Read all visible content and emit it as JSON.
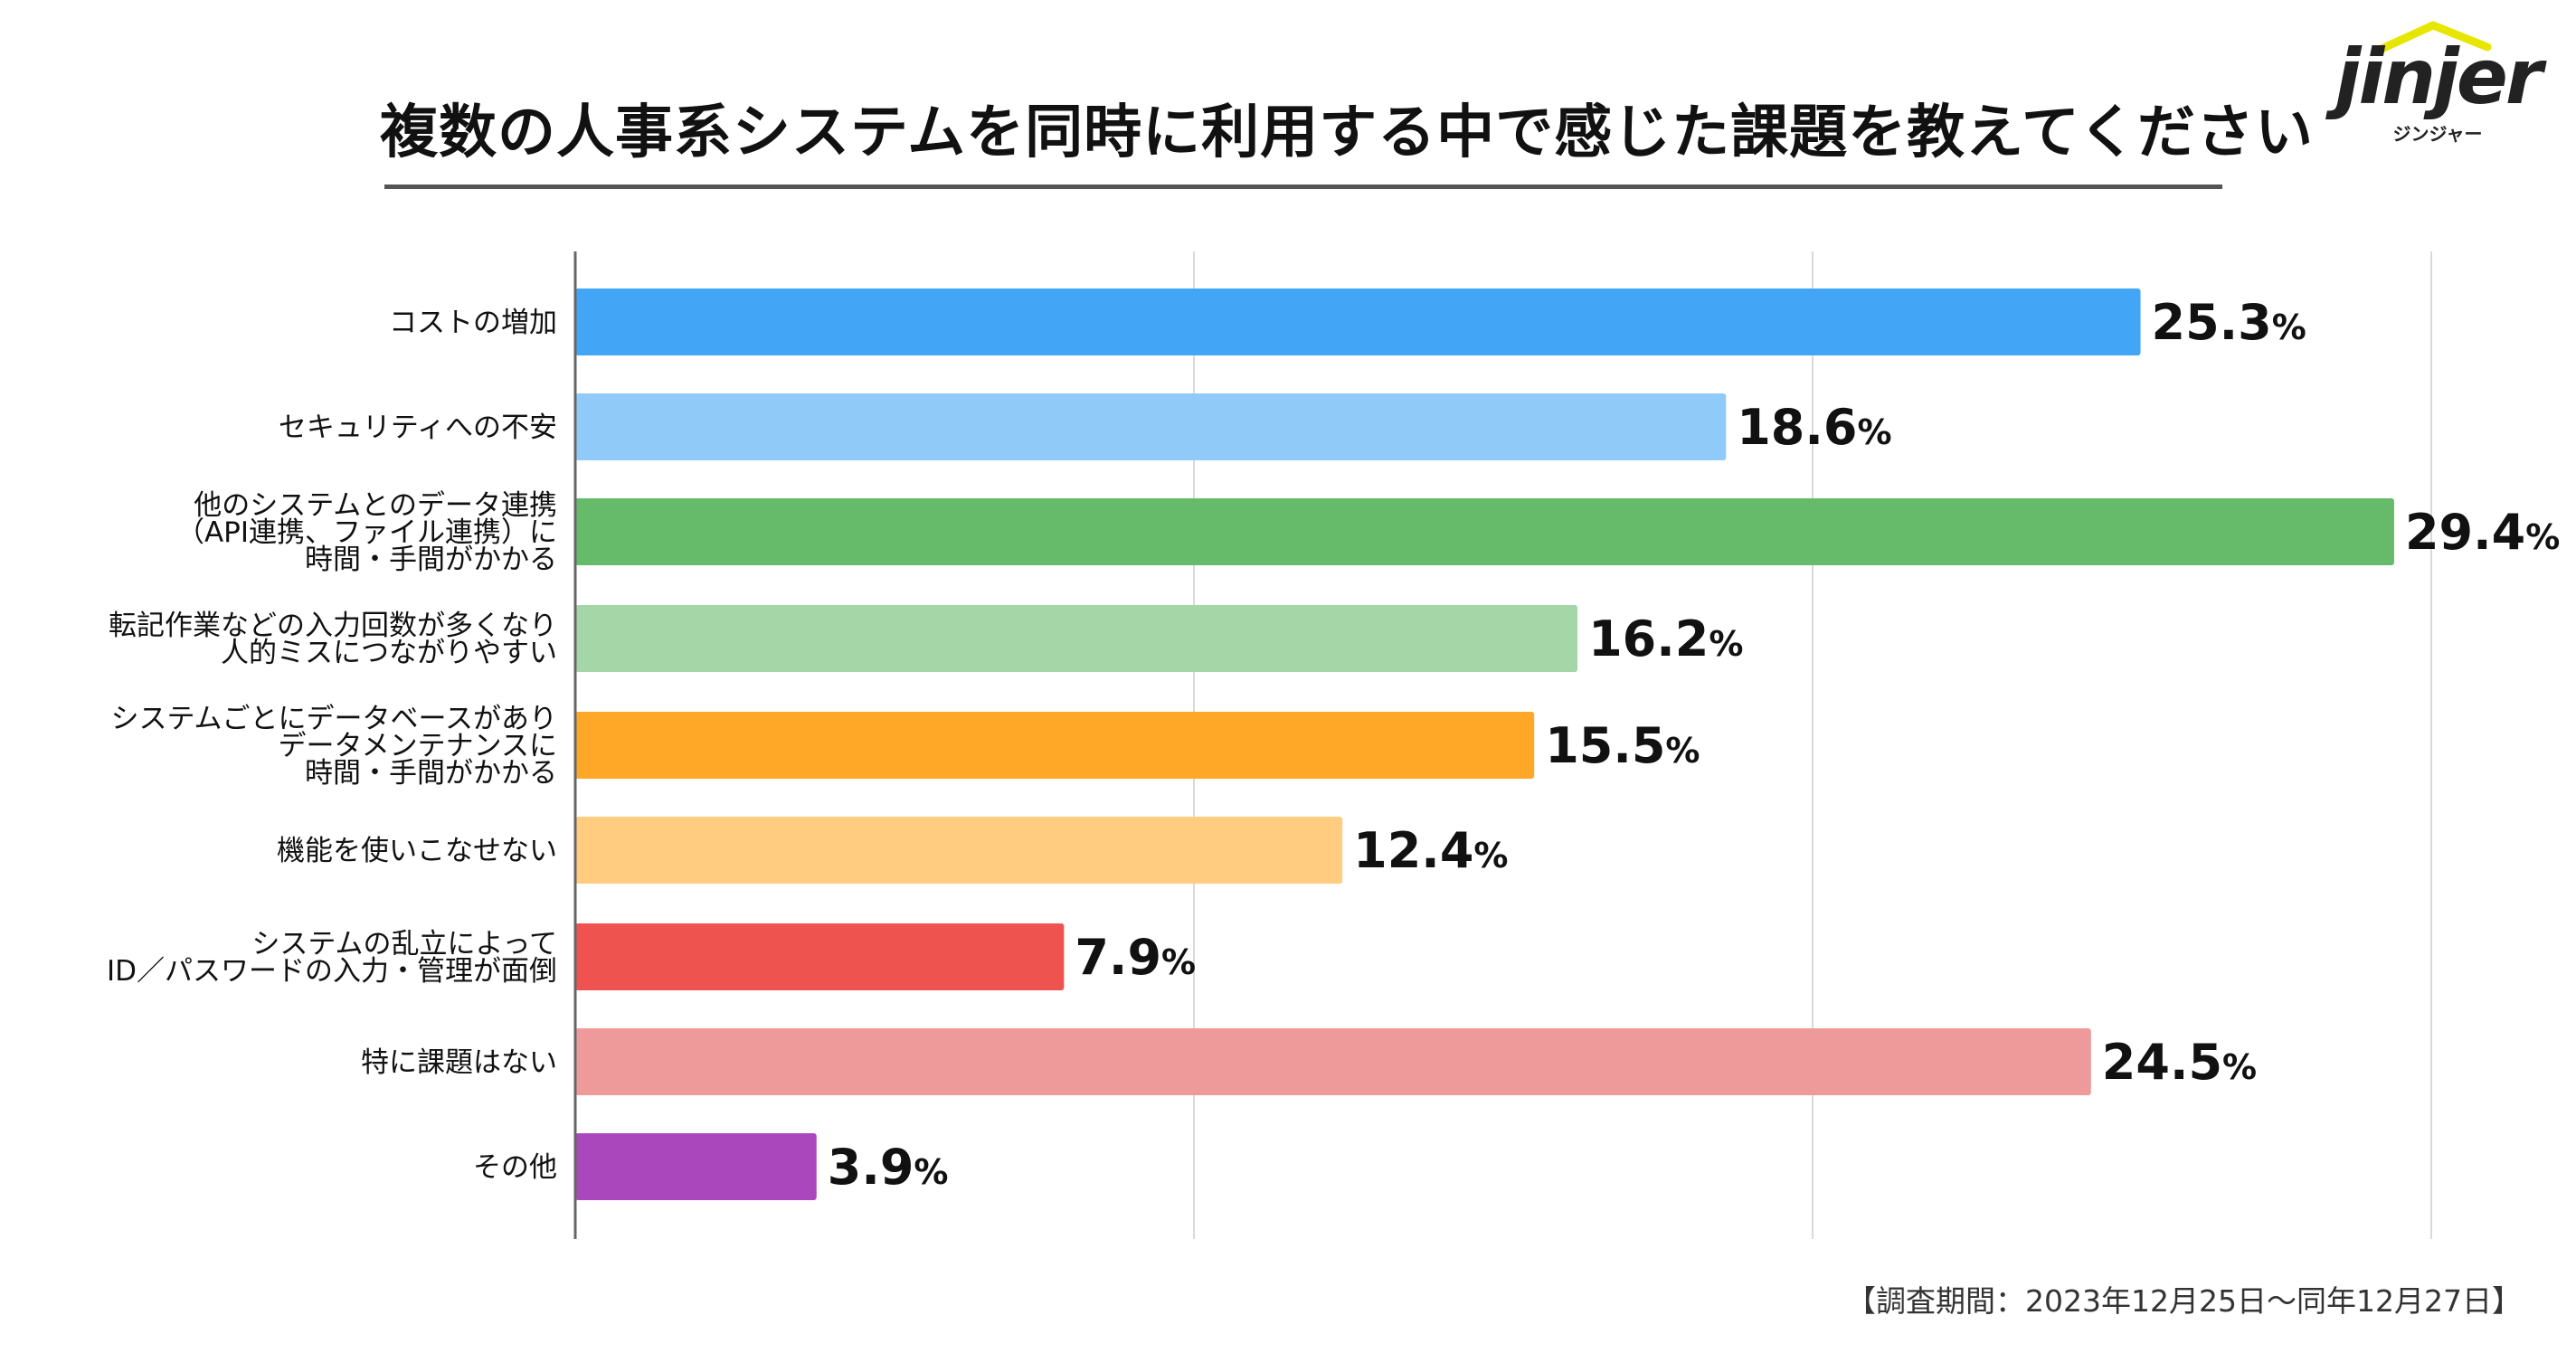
{
  "chart_data": {
    "type": "bar",
    "orientation": "horizontal",
    "title": "複数の人事系システムを同時に利用する中で感じた課題を教えてください",
    "categories": [
      "コストの増加",
      "セキュリティへの不安",
      "他のシステムとのデータ連携\n（API連携、ファイル連携）に\n時間・手間がかかる",
      "転記作業などの入力回数が多くなり\n人的ミスにつながりやすい",
      "システムごとにデータベースがあり\nデータメンテナンスに\n時間・手間がかかる",
      "機能を使いこなせない",
      "システムの乱立によって\nID／パスワードの入力・管理が面倒",
      "特に課題はない",
      "その他"
    ],
    "values": [
      25.3,
      18.6,
      29.4,
      16.2,
      15.5,
      12.4,
      7.9,
      24.5,
      3.9
    ],
    "value_suffix": "%",
    "colors": [
      "#42A5F5",
      "#90CAF9",
      "#66BB6A",
      "#A5D6A7",
      "#FFA726",
      "#FFCC80",
      "#EF5350",
      "#EF9A9A",
      "#AB47BC"
    ],
    "xlim": [
      0,
      30
    ],
    "grid": true
  },
  "brand": {
    "logo_text": "jinjer",
    "logo_subtext": "ジンジャー",
    "accent": "#E6E600"
  },
  "footnote": "【調査期間：2023年12月25日〜同年12月27日】"
}
